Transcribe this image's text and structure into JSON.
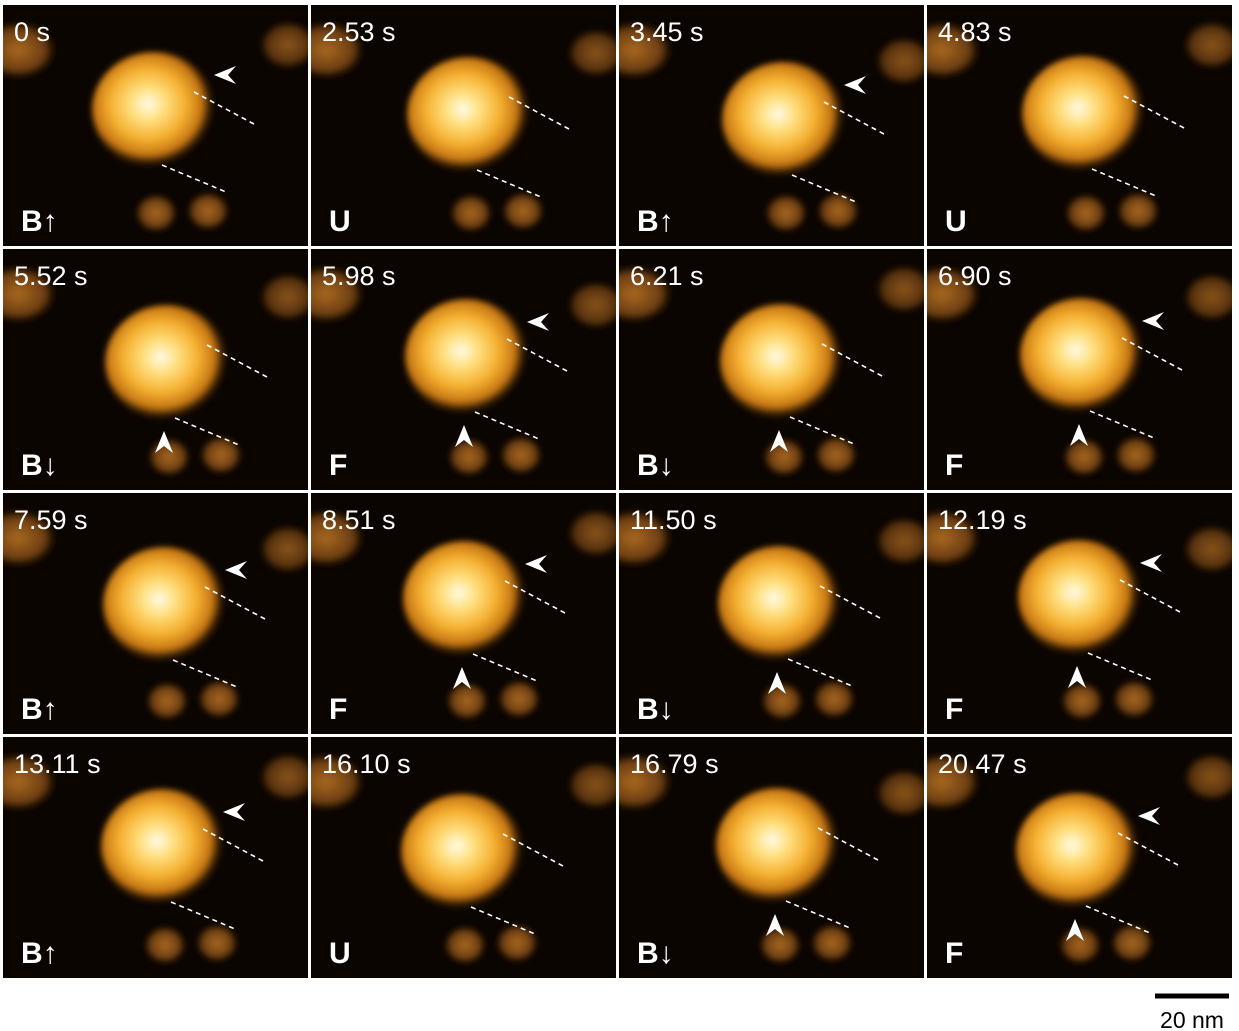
{
  "panels": [
    {
      "time": "0 s",
      "state": "B↑"
    },
    {
      "time": "2.53 s",
      "state": "U"
    },
    {
      "time": "3.45 s",
      "state": "B↑"
    },
    {
      "time": "4.83 s",
      "state": "U"
    },
    {
      "time": "5.52 s",
      "state": "B↓"
    },
    {
      "time": "5.98 s",
      "state": "F"
    },
    {
      "time": "6.21 s",
      "state": "B↓"
    },
    {
      "time": "6.90 s",
      "state": "F"
    },
    {
      "time": "7.59 s",
      "state": "B↑"
    },
    {
      "time": "8.51 s",
      "state": "F"
    },
    {
      "time": "11.50 s",
      "state": "B↓"
    },
    {
      "time": "12.19 s",
      "state": "F"
    },
    {
      "time": "13.11 s",
      "state": "B↑"
    },
    {
      "time": "16.10 s",
      "state": "U"
    },
    {
      "time": "16.79 s",
      "state": "B↓"
    },
    {
      "time": "20.47 s",
      "state": "F"
    }
  ],
  "scale_bar": {
    "label": "20 nm"
  }
}
